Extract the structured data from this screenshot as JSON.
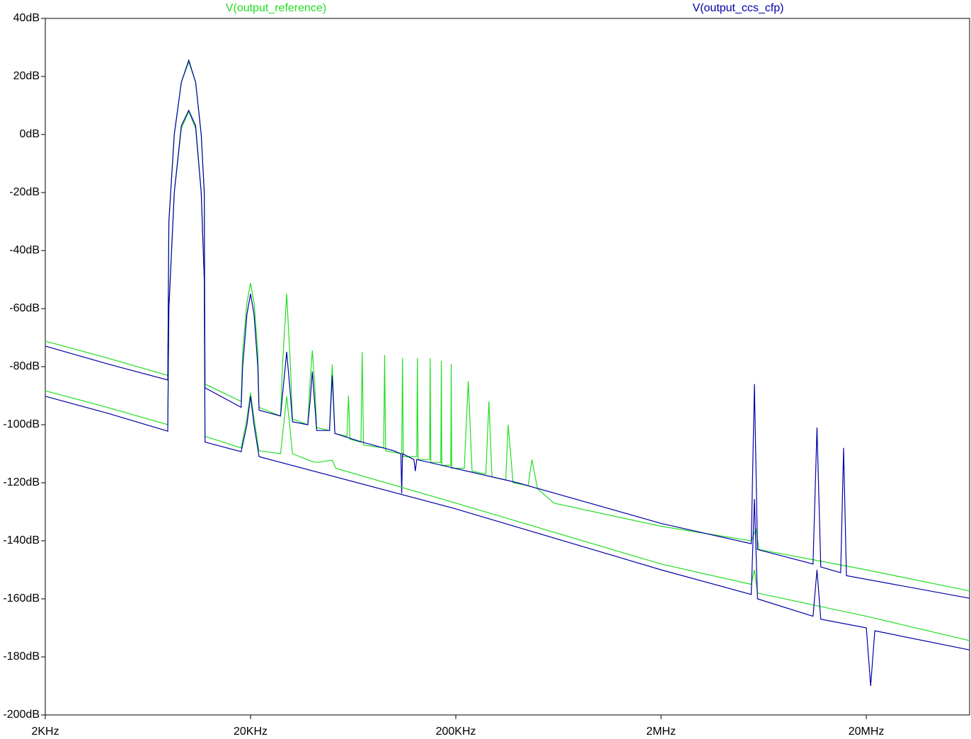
{
  "chart_data": {
    "type": "line",
    "xscale": "log",
    "xlim": [
      2000,
      63700000
    ],
    "ylim": [
      -200,
      40
    ],
    "xticks": [
      {
        "value": 2000,
        "label": "2KHz"
      },
      {
        "value": 20000,
        "label": "20KHz"
      },
      {
        "value": 200000,
        "label": "200KHz"
      },
      {
        "value": 2000000,
        "label": "2MHz"
      },
      {
        "value": 20000000,
        "label": "20MHz"
      }
    ],
    "yticks": [
      {
        "value": 40,
        "label": "40dB"
      },
      {
        "value": 20,
        "label": "20dB"
      },
      {
        "value": 0,
        "label": "0dB"
      },
      {
        "value": -20,
        "label": "-20dB"
      },
      {
        "value": -40,
        "label": "-40dB"
      },
      {
        "value": -60,
        "label": "-60dB"
      },
      {
        "value": -80,
        "label": "-80dB"
      },
      {
        "value": -100,
        "label": "-100dB"
      },
      {
        "value": -120,
        "label": "-120dB"
      },
      {
        "value": -140,
        "label": "-140dB"
      },
      {
        "value": -160,
        "label": "-160dB"
      },
      {
        "value": -180,
        "label": "-180dB"
      },
      {
        "value": -200,
        "label": "-200dB"
      }
    ],
    "series": [
      {
        "name": "V(output_reference)",
        "color": "#22dd22",
        "x": [
          2000,
          4000,
          7900,
          8000,
          8500,
          9200,
          10000,
          10800,
          11500,
          11900,
          12000,
          18000,
          18300,
          19200,
          20000,
          20800,
          21700,
          22000,
          28000,
          28600,
          30000,
          31300,
          32000,
          38000,
          39000,
          40000,
          41000,
          42000,
          48500,
          50000,
          51500,
          59000,
          60000,
          61000,
          69000,
          70000,
          71000,
          89000,
          90000,
          91000,
          109000,
          110000,
          111000,
          129000,
          130000,
          131000,
          149000,
          150000,
          151000,
          169000,
          170000,
          171000,
          189000,
          190000,
          191000,
          220000,
          230000,
          240000,
          280000,
          290000,
          300000,
          350000,
          360000,
          380000,
          450000,
          470000,
          500000,
          600000,
          2000000,
          5500000,
          5800000,
          6000000,
          20000000,
          63700000
        ],
        "values": [
          -71.2,
          -77,
          -83,
          -30,
          0,
          18,
          25,
          18,
          0,
          -20,
          -86,
          -92,
          -75,
          -58,
          -51.2,
          -58,
          -75,
          -94,
          -97,
          -80,
          -54.9,
          -80,
          -98,
          -100,
          -85,
          -74.4,
          -85,
          -101,
          -102,
          -79.3,
          -103,
          -104,
          -90,
          -105,
          -106,
          -74.9,
          -107,
          -108,
          -76,
          -109,
          -110,
          -77,
          -111,
          -111,
          -77,
          -112,
          -112,
          -77,
          -113,
          -113,
          -78,
          -114,
          -114,
          -79,
          -115,
          -115,
          -85,
          -116,
          -117,
          -92,
          -118,
          -119,
          -100,
          -120,
          -121,
          -112,
          -122,
          -127,
          -135,
          -140,
          -136,
          -143,
          -150,
          -157.3
        ]
      },
      {
        "name": "V(output_ccs_cfp)",
        "color": "#0000a8",
        "x": [
          2000,
          4000,
          7900,
          8000,
          8500,
          9200,
          10000,
          10800,
          11500,
          11900,
          12000,
          18000,
          18300,
          19200,
          20000,
          20800,
          21700,
          22000,
          28000,
          28600,
          30000,
          31300,
          32000,
          38000,
          39000,
          40000,
          41000,
          42000,
          48500,
          50000,
          51500,
          60000,
          70000,
          100000,
          108000,
          109000,
          110000,
          125000,
          127000,
          129000,
          400000,
          2000000,
          5500000,
          5700000,
          5900000,
          11000000,
          11500000,
          12000000,
          15000000,
          15500000,
          16000000,
          63700000
        ],
        "values": [
          -72.9,
          -79,
          -84.6,
          -30,
          0,
          18,
          25.6,
          18,
          0,
          -20,
          -87.3,
          -94,
          -80,
          -62,
          -54.9,
          -62,
          -80,
          -95,
          -97,
          -90,
          -74.9,
          -90,
          -99,
          -100,
          -92,
          -81.7,
          -92,
          -102,
          -102,
          -83,
          -103,
          -104.5,
          -106,
          -109,
          -110,
          -123.7,
          -110,
          -112,
          -116,
          -112,
          -120,
          -134,
          -141,
          -86,
          -143,
          -148,
          -101,
          -149,
          -151,
          -108,
          -152,
          -159.8
        ]
      },
      {
        "color": "#22dd22",
        "x": [
          2000,
          4000,
          7900,
          8000,
          8500,
          9200,
          10000,
          10800,
          11500,
          11900,
          12000,
          18000,
          19200,
          20000,
          20800,
          22000,
          28000,
          29000,
          30000,
          31000,
          32000,
          40000,
          42000,
          50000,
          52000,
          200000,
          2000000,
          5500000,
          5700000,
          5900000,
          20000000,
          63700000
        ],
        "values": [
          -88.3,
          -94,
          -100,
          -60,
          -20,
          2,
          8,
          2,
          -20,
          -50,
          -104,
          -108,
          -98,
          -89,
          -98,
          -109,
          -110,
          -100,
          -90.2,
          -100,
          -110,
          -112.7,
          -113,
          -112.2,
          -115,
          -127,
          -148,
          -155,
          -150,
          -158,
          -166,
          -174.4
        ]
      },
      {
        "color": "#0000a8",
        "x": [
          2000,
          4000,
          7900,
          8000,
          8500,
          9200,
          10000,
          10800,
          11500,
          11900,
          12000,
          18000,
          19200,
          20000,
          20800,
          22000,
          200000,
          2000000,
          5500000,
          5700000,
          5900000,
          11000000,
          11500000,
          12000000,
          20000000,
          21000000,
          22000000,
          63700000
        ],
        "values": [
          -90.2,
          -96,
          -102.2,
          -60,
          -20,
          3,
          8.3,
          3,
          -20,
          -50,
          -106,
          -109.3,
          -100,
          -90.2,
          -100,
          -111,
          -129,
          -150,
          -158.5,
          -125.6,
          -160,
          -166,
          -150,
          -167,
          -170,
          -190,
          -171,
          -177.6
        ]
      }
    ]
  }
}
